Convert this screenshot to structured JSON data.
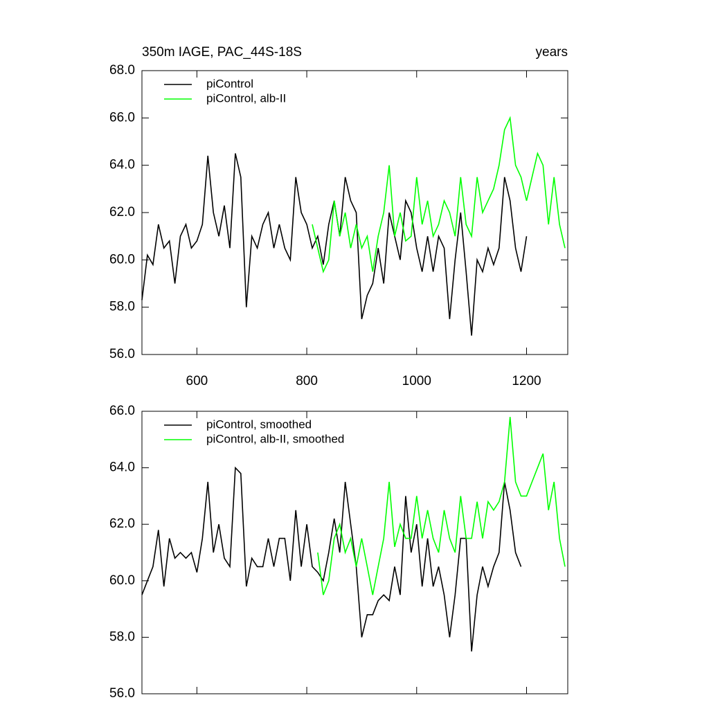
{
  "chart_data": [
    {
      "type": "line",
      "title": "350m IAGE, PAC_44S-18S",
      "right_title": "years",
      "xlim": [
        500,
        1275
      ],
      "xticks": [
        600,
        800,
        1000,
        1200
      ],
      "ylim": [
        56,
        68
      ],
      "yticks": [
        {
          "value": 56,
          "label": "56.0"
        },
        {
          "value": 58,
          "label": "58.0"
        },
        {
          "value": 60,
          "label": "60.0"
        },
        {
          "value": 62,
          "label": "62.0"
        },
        {
          "value": 64,
          "label": "64.0"
        },
        {
          "value": 66,
          "label": "66.0"
        },
        {
          "value": 68,
          "label": "68.0"
        }
      ],
      "legend": "upper left",
      "series": [
        {
          "name": "piControl",
          "color": "#000000",
          "x": [
            500,
            510,
            520,
            530,
            540,
            550,
            560,
            570,
            580,
            590,
            600,
            610,
            620,
            630,
            640,
            650,
            660,
            670,
            680,
            690,
            700,
            710,
            720,
            730,
            740,
            750,
            760,
            770,
            780,
            790,
            800,
            810,
            820,
            830,
            840,
            850,
            860,
            870,
            880,
            890,
            900,
            910,
            920,
            930,
            940,
            950,
            960,
            970,
            980,
            990,
            1000,
            1010,
            1020,
            1030,
            1040,
            1050,
            1060,
            1070,
            1080,
            1090,
            1100,
            1110,
            1120,
            1130,
            1140,
            1150,
            1160,
            1170,
            1180,
            1190,
            1200
          ],
          "values": [
            58.3,
            60.2,
            59.8,
            61.5,
            60.5,
            60.8,
            59.0,
            61.0,
            61.5,
            60.5,
            60.8,
            61.5,
            64.4,
            62.0,
            61.0,
            62.3,
            60.5,
            64.5,
            63.5,
            58.0,
            61.0,
            60.5,
            61.5,
            62.0,
            60.5,
            61.5,
            60.5,
            60.0,
            63.5,
            62.0,
            61.5,
            60.5,
            61.0,
            59.8,
            61.5,
            62.5,
            61.0,
            63.5,
            62.5,
            62.0,
            57.5,
            58.5,
            59.0,
            60.5,
            59.0,
            62.0,
            61.0,
            60.0,
            62.5,
            62.0,
            60.5,
            59.5,
            61.0,
            59.5,
            61.0,
            60.5,
            57.5,
            60.0,
            62.0,
            59.5,
            56.8,
            60.0,
            59.5,
            60.5,
            59.8,
            60.5,
            63.5,
            62.5,
            60.5,
            59.5,
            61.0
          ]
        },
        {
          "name": "piControl, alb-II",
          "color": "#00ff00",
          "x": [
            810,
            820,
            830,
            840,
            850,
            860,
            870,
            880,
            890,
            900,
            910,
            920,
            930,
            940,
            950,
            960,
            970,
            980,
            990,
            1000,
            1010,
            1020,
            1030,
            1040,
            1050,
            1060,
            1070,
            1080,
            1090,
            1100,
            1110,
            1120,
            1130,
            1140,
            1150,
            1160,
            1170,
            1180,
            1190,
            1200,
            1210,
            1220,
            1230,
            1240,
            1250,
            1260,
            1270
          ],
          "values": [
            61.5,
            60.5,
            59.5,
            60.0,
            62.5,
            61.0,
            62.0,
            60.5,
            61.5,
            60.5,
            61.0,
            59.5,
            61.0,
            62.0,
            64.0,
            61.0,
            62.0,
            60.8,
            61.0,
            63.5,
            61.5,
            62.5,
            61.0,
            61.5,
            62.5,
            62.0,
            61.0,
            63.5,
            61.5,
            61.0,
            63.5,
            62.0,
            62.5,
            63.0,
            64.0,
            65.5,
            66.0,
            64.0,
            63.5,
            62.5,
            63.5,
            64.5,
            64.0,
            61.5,
            63.5,
            61.5,
            60.5
          ]
        }
      ]
    },
    {
      "type": "line",
      "xlim": [
        500,
        1275
      ],
      "xticks": [
        600,
        800,
        1000,
        1200
      ],
      "ylim": [
        56,
        66
      ],
      "yticks": [
        {
          "value": 56,
          "label": "56.0"
        },
        {
          "value": 58,
          "label": "58.0"
        },
        {
          "value": 60,
          "label": "60.0"
        },
        {
          "value": 62,
          "label": "62.0"
        },
        {
          "value": 64,
          "label": "64.0"
        },
        {
          "value": 66,
          "label": "66.0"
        }
      ],
      "legend": "upper left",
      "series": [
        {
          "name": "piControl, smoothed",
          "color": "#000000",
          "x": [
            500,
            510,
            520,
            530,
            540,
            550,
            560,
            570,
            580,
            590,
            600,
            610,
            620,
            630,
            640,
            650,
            660,
            670,
            680,
            690,
            700,
            710,
            720,
            730,
            740,
            750,
            760,
            770,
            780,
            790,
            800,
            810,
            820,
            830,
            840,
            850,
            860,
            870,
            880,
            890,
            900,
            910,
            920,
            930,
            940,
            950,
            960,
            970,
            980,
            990,
            1000,
            1010,
            1020,
            1030,
            1040,
            1050,
            1060,
            1070,
            1080,
            1090,
            1100,
            1110,
            1120,
            1130,
            1140,
            1150,
            1160,
            1170,
            1180,
            1190
          ],
          "values": [
            59.5,
            60.0,
            60.5,
            61.8,
            59.8,
            61.5,
            60.8,
            61.0,
            60.8,
            61.0,
            60.3,
            61.5,
            63.5,
            61.0,
            62.0,
            60.8,
            60.5,
            64.0,
            63.8,
            59.8,
            60.8,
            60.5,
            60.5,
            61.5,
            60.5,
            61.5,
            61.5,
            60.0,
            62.5,
            60.5,
            62.0,
            60.5,
            60.3,
            60.0,
            61.0,
            62.2,
            61.0,
            63.5,
            62.0,
            60.5,
            58.0,
            58.8,
            58.8,
            59.3,
            59.5,
            59.3,
            60.5,
            59.5,
            63.0,
            61.0,
            62.0,
            59.8,
            61.5,
            59.8,
            60.5,
            59.5,
            58.0,
            59.5,
            61.5,
            61.5,
            57.5,
            59.5,
            60.5,
            59.8,
            60.5,
            61.0,
            63.5,
            62.5,
            61.0,
            60.5
          ]
        },
        {
          "name": "piControl, alb-II, smoothed",
          "color": "#00ff00",
          "x": [
            820,
            830,
            840,
            850,
            860,
            870,
            880,
            890,
            900,
            910,
            920,
            930,
            940,
            950,
            960,
            970,
            980,
            990,
            1000,
            1010,
            1020,
            1030,
            1040,
            1050,
            1060,
            1070,
            1080,
            1090,
            1100,
            1110,
            1120,
            1130,
            1140,
            1150,
            1160,
            1170,
            1180,
            1190,
            1200,
            1210,
            1220,
            1230,
            1240,
            1250,
            1260,
            1270
          ],
          "values": [
            61.0,
            59.5,
            60.0,
            61.5,
            62.0,
            61.0,
            61.5,
            60.5,
            61.5,
            60.5,
            59.5,
            60.5,
            61.5,
            63.5,
            61.2,
            62.0,
            61.5,
            61.5,
            63.0,
            61.5,
            62.5,
            61.5,
            61.0,
            62.5,
            61.5,
            61.0,
            63.0,
            61.5,
            61.5,
            62.8,
            61.5,
            62.8,
            62.5,
            62.8,
            63.5,
            65.8,
            63.5,
            63.0,
            63.0,
            63.5,
            64.0,
            64.5,
            62.5,
            63.5,
            61.5,
            60.5
          ]
        }
      ]
    }
  ]
}
